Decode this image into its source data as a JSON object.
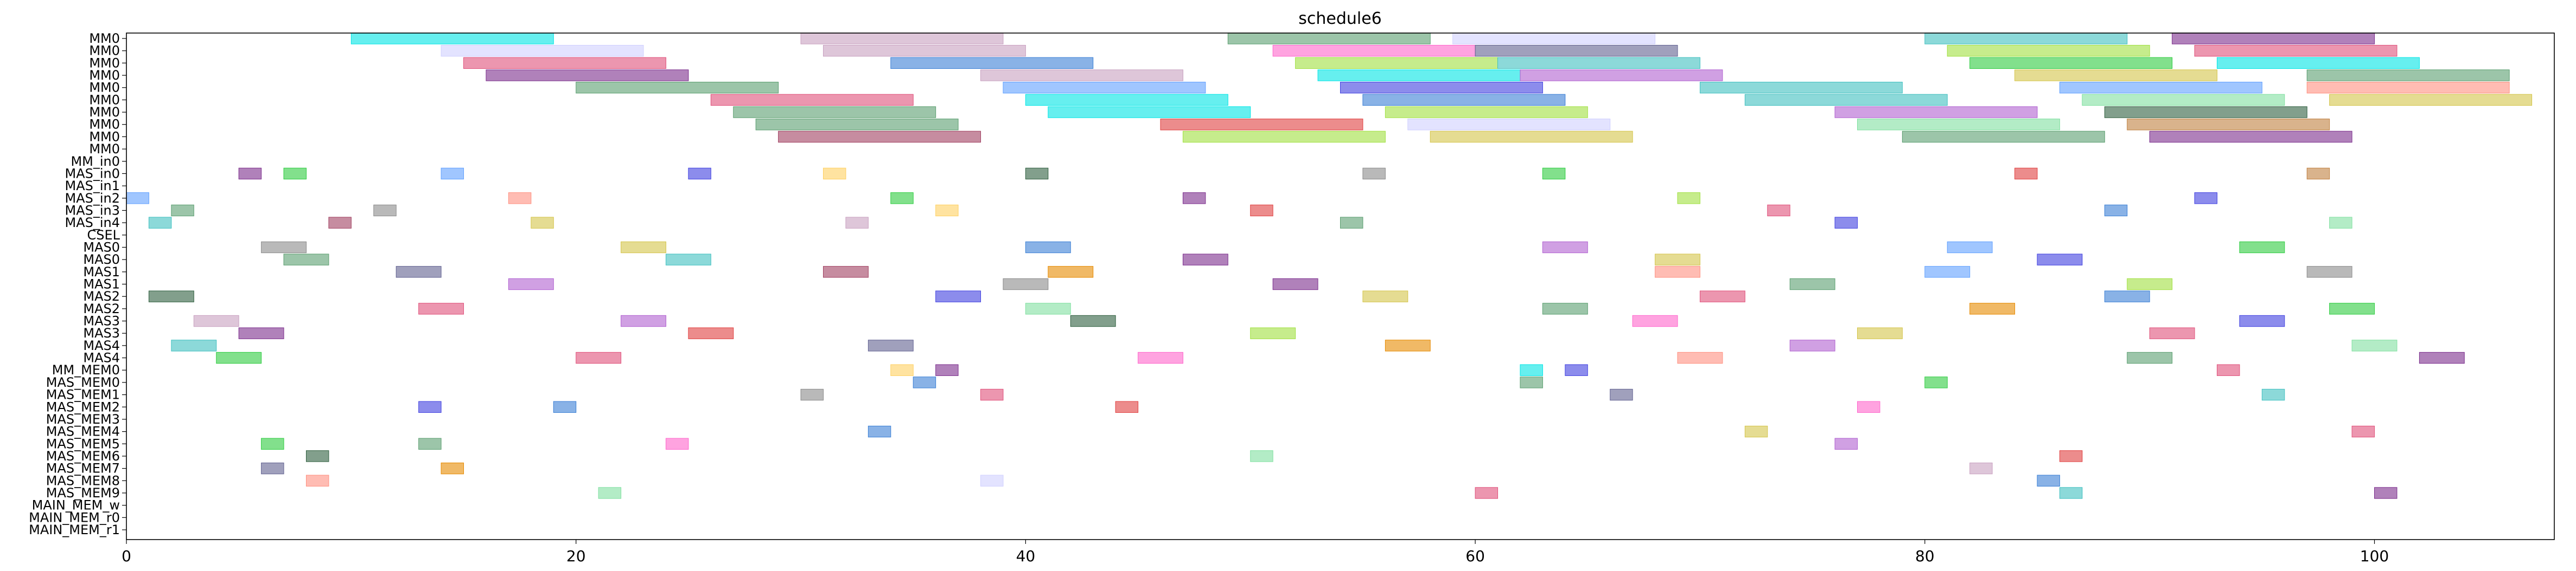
{
  "chart_data": {
    "type": "gantt",
    "title": "schedule6",
    "xlabel": "",
    "ylabel": "",
    "xlim": [
      0,
      108
    ],
    "grid": false,
    "legend": "none",
    "x_ticks": [
      0,
      20,
      40,
      60,
      80,
      100
    ],
    "x_tick_labels": [
      "0",
      "20",
      "40",
      "60",
      "80",
      "100"
    ],
    "rows": [
      "MM0",
      "MM0",
      "MM0",
      "MM0",
      "MM0",
      "MM0",
      "MM0",
      "MM0",
      "MM0",
      "MM0",
      "MM_in0",
      "MAS_in0",
      "MAS_in1",
      "MAS_in2",
      "MAS_in3",
      "MAS_in4",
      "CSEL",
      "MAS0",
      "MAS0",
      "MAS1",
      "MAS1",
      "MAS2",
      "MAS2",
      "MAS3",
      "MAS3",
      "MAS4",
      "MAS4",
      "MM_MEM0",
      "MAS_MEM0",
      "MAS_MEM1",
      "MAS_MEM2",
      "MAS_MEM3",
      "MAS_MEM4",
      "MAS_MEM5",
      "MAS_MEM6",
      "MAS_MEM7",
      "MAS_MEM8",
      "MAS_MEM9",
      "MAIN_MEM_w",
      "MAIN_MEM_r0",
      "MAIN_MEM_r1"
    ],
    "palette": [
      "#00e5e5",
      "#7b2d8c",
      "#e0507a",
      "#5a9e6f",
      "#3a7fd5",
      "#c8a0c0",
      "#e68a00",
      "#2ecc40",
      "#8a8a8a",
      "#d4c44a",
      "#ff66cc",
      "#4040e0",
      "#a0e040",
      "#e04040",
      "#40c0c0",
      "#b060d0",
      "#ffd060",
      "#60a0ff",
      "#c08040",
      "#80e0a0",
      "#2f5f3f",
      "#ff9080",
      "#d0d0ff",
      "#a04060",
      "#606090"
    ],
    "tasks": [
      {
        "row": 0,
        "start": 10,
        "end": 19,
        "c": 0
      },
      {
        "row": 0,
        "start": 30,
        "end": 39,
        "c": 5
      },
      {
        "row": 0,
        "start": 49,
        "end": 58,
        "c": 3
      },
      {
        "row": 0,
        "start": 59,
        "end": 68,
        "c": 22
      },
      {
        "row": 0,
        "start": 80,
        "end": 89,
        "c": 14
      },
      {
        "row": 0,
        "start": 91,
        "end": 100,
        "c": 1
      },
      {
        "row": 1,
        "start": 14,
        "end": 23,
        "c": 22
      },
      {
        "row": 1,
        "start": 31,
        "end": 40,
        "c": 5
      },
      {
        "row": 1,
        "start": 51,
        "end": 60,
        "c": 10
      },
      {
        "row": 1,
        "start": 60,
        "end": 69,
        "c": 24
      },
      {
        "row": 1,
        "start": 81,
        "end": 90,
        "c": 12
      },
      {
        "row": 1,
        "start": 92,
        "end": 101,
        "c": 2
      },
      {
        "row": 2,
        "start": 15,
        "end": 24,
        "c": 2
      },
      {
        "row": 2,
        "start": 34,
        "end": 43,
        "c": 4
      },
      {
        "row": 2,
        "start": 52,
        "end": 61,
        "c": 12
      },
      {
        "row": 2,
        "start": 61,
        "end": 70,
        "c": 14
      },
      {
        "row": 2,
        "start": 82,
        "end": 91,
        "c": 7
      },
      {
        "row": 2,
        "start": 93,
        "end": 102,
        "c": 0
      },
      {
        "row": 3,
        "start": 16,
        "end": 25,
        "c": 1
      },
      {
        "row": 3,
        "start": 38,
        "end": 47,
        "c": 5
      },
      {
        "row": 3,
        "start": 53,
        "end": 62,
        "c": 0
      },
      {
        "row": 3,
        "start": 62,
        "end": 71,
        "c": 15
      },
      {
        "row": 3,
        "start": 84,
        "end": 93,
        "c": 9
      },
      {
        "row": 3,
        "start": 97,
        "end": 106,
        "c": 3
      },
      {
        "row": 4,
        "start": 20,
        "end": 29,
        "c": 3
      },
      {
        "row": 4,
        "start": 39,
        "end": 48,
        "c": 17
      },
      {
        "row": 4,
        "start": 54,
        "end": 63,
        "c": 11
      },
      {
        "row": 4,
        "start": 70,
        "end": 79,
        "c": 14
      },
      {
        "row": 4,
        "start": 86,
        "end": 95,
        "c": 17
      },
      {
        "row": 4,
        "start": 97,
        "end": 106,
        "c": 21
      },
      {
        "row": 5,
        "start": 26,
        "end": 35,
        "c": 2
      },
      {
        "row": 5,
        "start": 40,
        "end": 49,
        "c": 0
      },
      {
        "row": 5,
        "start": 55,
        "end": 64,
        "c": 4
      },
      {
        "row": 5,
        "start": 72,
        "end": 81,
        "c": 14
      },
      {
        "row": 5,
        "start": 87,
        "end": 96,
        "c": 19
      },
      {
        "row": 5,
        "start": 98,
        "end": 107,
        "c": 9
      },
      {
        "row": 6,
        "start": 27,
        "end": 36,
        "c": 3
      },
      {
        "row": 6,
        "start": 41,
        "end": 50,
        "c": 0
      },
      {
        "row": 6,
        "start": 56,
        "end": 65,
        "c": 12
      },
      {
        "row": 6,
        "start": 76,
        "end": 85,
        "c": 15
      },
      {
        "row": 6,
        "start": 88,
        "end": 97,
        "c": 20
      },
      {
        "row": 7,
        "start": 28,
        "end": 37,
        "c": 3
      },
      {
        "row": 7,
        "start": 46,
        "end": 55,
        "c": 13
      },
      {
        "row": 7,
        "start": 57,
        "end": 66,
        "c": 22
      },
      {
        "row": 7,
        "start": 77,
        "end": 86,
        "c": 19
      },
      {
        "row": 7,
        "start": 89,
        "end": 98,
        "c": 18
      },
      {
        "row": 8,
        "start": 29,
        "end": 38,
        "c": 23
      },
      {
        "row": 8,
        "start": 47,
        "end": 56,
        "c": 12
      },
      {
        "row": 8,
        "start": 58,
        "end": 67,
        "c": 9
      },
      {
        "row": 8,
        "start": 79,
        "end": 88,
        "c": 3
      },
      {
        "row": 8,
        "start": 90,
        "end": 99,
        "c": 1
      },
      {
        "row": 11,
        "start": 5,
        "end": 6,
        "c": 1
      },
      {
        "row": 11,
        "start": 7,
        "end": 8,
        "c": 7
      },
      {
        "row": 11,
        "start": 14,
        "end": 15,
        "c": 17
      },
      {
        "row": 11,
        "start": 25,
        "end": 26,
        "c": 11
      },
      {
        "row": 11,
        "start": 31,
        "end": 32,
        "c": 16
      },
      {
        "row": 11,
        "start": 40,
        "end": 41,
        "c": 20
      },
      {
        "row": 11,
        "start": 55,
        "end": 56,
        "c": 8
      },
      {
        "row": 11,
        "start": 63,
        "end": 64,
        "c": 7
      },
      {
        "row": 11,
        "start": 84,
        "end": 85,
        "c": 13
      },
      {
        "row": 11,
        "start": 97,
        "end": 98,
        "c": 18
      },
      {
        "row": 13,
        "start": 0,
        "end": 1,
        "c": 17
      },
      {
        "row": 13,
        "start": 17,
        "end": 18,
        "c": 21
      },
      {
        "row": 13,
        "start": 34,
        "end": 35,
        "c": 7
      },
      {
        "row": 13,
        "start": 47,
        "end": 48,
        "c": 1
      },
      {
        "row": 13,
        "start": 69,
        "end": 70,
        "c": 12
      },
      {
        "row": 13,
        "start": 92,
        "end": 93,
        "c": 11
      },
      {
        "row": 14,
        "start": 2,
        "end": 3,
        "c": 3
      },
      {
        "row": 14,
        "start": 11,
        "end": 12,
        "c": 8
      },
      {
        "row": 14,
        "start": 36,
        "end": 37,
        "c": 16
      },
      {
        "row": 14,
        "start": 50,
        "end": 51,
        "c": 13
      },
      {
        "row": 14,
        "start": 73,
        "end": 74,
        "c": 2
      },
      {
        "row": 14,
        "start": 88,
        "end": 89,
        "c": 4
      },
      {
        "row": 15,
        "start": 1,
        "end": 2,
        "c": 14
      },
      {
        "row": 15,
        "start": 9,
        "end": 10,
        "c": 23
      },
      {
        "row": 15,
        "start": 18,
        "end": 19,
        "c": 9
      },
      {
        "row": 15,
        "start": 32,
        "end": 33,
        "c": 5
      },
      {
        "row": 15,
        "start": 54,
        "end": 55,
        "c": 3
      },
      {
        "row": 15,
        "start": 76,
        "end": 77,
        "c": 11
      },
      {
        "row": 15,
        "start": 98,
        "end": 99,
        "c": 19
      },
      {
        "row": 17,
        "start": 6,
        "end": 8,
        "c": 8
      },
      {
        "row": 17,
        "start": 22,
        "end": 24,
        "c": 9
      },
      {
        "row": 17,
        "start": 40,
        "end": 42,
        "c": 4
      },
      {
        "row": 17,
        "start": 63,
        "end": 65,
        "c": 15
      },
      {
        "row": 17,
        "start": 81,
        "end": 83,
        "c": 17
      },
      {
        "row": 17,
        "start": 94,
        "end": 96,
        "c": 7
      },
      {
        "row": 18,
        "start": 7,
        "end": 9,
        "c": 3
      },
      {
        "row": 18,
        "start": 24,
        "end": 26,
        "c": 14
      },
      {
        "row": 18,
        "start": 47,
        "end": 49,
        "c": 1
      },
      {
        "row": 18,
        "start": 68,
        "end": 70,
        "c": 9
      },
      {
        "row": 18,
        "start": 85,
        "end": 87,
        "c": 11
      },
      {
        "row": 19,
        "start": 12,
        "end": 14,
        "c": 24
      },
      {
        "row": 19,
        "start": 31,
        "end": 33,
        "c": 23
      },
      {
        "row": 19,
        "start": 41,
        "end": 43,
        "c": 6
      },
      {
        "row": 19,
        "start": 68,
        "end": 70,
        "c": 21
      },
      {
        "row": 19,
        "start": 80,
        "end": 82,
        "c": 17
      },
      {
        "row": 19,
        "start": 97,
        "end": 99,
        "c": 8
      },
      {
        "row": 20,
        "start": 17,
        "end": 19,
        "c": 15
      },
      {
        "row": 20,
        "start": 39,
        "end": 41,
        "c": 8
      },
      {
        "row": 20,
        "start": 51,
        "end": 53,
        "c": 1
      },
      {
        "row": 20,
        "start": 74,
        "end": 76,
        "c": 3
      },
      {
        "row": 20,
        "start": 89,
        "end": 91,
        "c": 12
      },
      {
        "row": 21,
        "start": 1,
        "end": 3,
        "c": 20
      },
      {
        "row": 21,
        "start": 36,
        "end": 38,
        "c": 11
      },
      {
        "row": 21,
        "start": 55,
        "end": 57,
        "c": 9
      },
      {
        "row": 21,
        "start": 70,
        "end": 72,
        "c": 2
      },
      {
        "row": 21,
        "start": 88,
        "end": 90,
        "c": 4
      },
      {
        "row": 22,
        "start": 13,
        "end": 15,
        "c": 2
      },
      {
        "row": 22,
        "start": 40,
        "end": 42,
        "c": 19
      },
      {
        "row": 22,
        "start": 63,
        "end": 65,
        "c": 3
      },
      {
        "row": 22,
        "start": 82,
        "end": 84,
        "c": 6
      },
      {
        "row": 22,
        "start": 98,
        "end": 100,
        "c": 7
      },
      {
        "row": 23,
        "start": 3,
        "end": 5,
        "c": 5
      },
      {
        "row": 23,
        "start": 22,
        "end": 24,
        "c": 15
      },
      {
        "row": 23,
        "start": 42,
        "end": 44,
        "c": 20
      },
      {
        "row": 23,
        "start": 67,
        "end": 69,
        "c": 10
      },
      {
        "row": 23,
        "start": 94,
        "end": 96,
        "c": 11
      },
      {
        "row": 24,
        "start": 5,
        "end": 7,
        "c": 1
      },
      {
        "row": 24,
        "start": 25,
        "end": 27,
        "c": 13
      },
      {
        "row": 24,
        "start": 50,
        "end": 52,
        "c": 12
      },
      {
        "row": 24,
        "start": 77,
        "end": 79,
        "c": 9
      },
      {
        "row": 24,
        "start": 90,
        "end": 92,
        "c": 2
      },
      {
        "row": 25,
        "start": 2,
        "end": 4,
        "c": 14
      },
      {
        "row": 25,
        "start": 33,
        "end": 35,
        "c": 24
      },
      {
        "row": 25,
        "start": 56,
        "end": 58,
        "c": 6
      },
      {
        "row": 25,
        "start": 74,
        "end": 76,
        "c": 15
      },
      {
        "row": 25,
        "start": 99,
        "end": 101,
        "c": 19
      },
      {
        "row": 26,
        "start": 4,
        "end": 6,
        "c": 7
      },
      {
        "row": 26,
        "start": 20,
        "end": 22,
        "c": 2
      },
      {
        "row": 26,
        "start": 45,
        "end": 47,
        "c": 10
      },
      {
        "row": 26,
        "start": 69,
        "end": 71,
        "c": 21
      },
      {
        "row": 26,
        "start": 89,
        "end": 91,
        "c": 3
      },
      {
        "row": 26,
        "start": 102,
        "end": 104,
        "c": 1
      },
      {
        "row": 27,
        "start": 34,
        "end": 35,
        "c": 16
      },
      {
        "row": 27,
        "start": 36,
        "end": 37,
        "c": 1
      },
      {
        "row": 27,
        "start": 62,
        "end": 63,
        "c": 0
      },
      {
        "row": 27,
        "start": 64,
        "end": 65,
        "c": 11
      },
      {
        "row": 27,
        "start": 93,
        "end": 94,
        "c": 2
      },
      {
        "row": 28,
        "start": 35,
        "end": 36,
        "c": 4
      },
      {
        "row": 28,
        "start": 62,
        "end": 63,
        "c": 3
      },
      {
        "row": 28,
        "start": 80,
        "end": 81,
        "c": 7
      },
      {
        "row": 29,
        "start": 30,
        "end": 31,
        "c": 8
      },
      {
        "row": 29,
        "start": 38,
        "end": 39,
        "c": 2
      },
      {
        "row": 29,
        "start": 66,
        "end": 67,
        "c": 24
      },
      {
        "row": 29,
        "start": 95,
        "end": 96,
        "c": 14
      },
      {
        "row": 30,
        "start": 13,
        "end": 14,
        "c": 11
      },
      {
        "row": 30,
        "start": 19,
        "end": 20,
        "c": 4
      },
      {
        "row": 30,
        "start": 44,
        "end": 45,
        "c": 13
      },
      {
        "row": 30,
        "start": 77,
        "end": 78,
        "c": 10
      },
      {
        "row": 32,
        "start": 33,
        "end": 34,
        "c": 4
      },
      {
        "row": 32,
        "start": 72,
        "end": 73,
        "c": 9
      },
      {
        "row": 32,
        "start": 99,
        "end": 100,
        "c": 2
      },
      {
        "row": 33,
        "start": 6,
        "end": 7,
        "c": 7
      },
      {
        "row": 33,
        "start": 13,
        "end": 14,
        "c": 3
      },
      {
        "row": 33,
        "start": 24,
        "end": 25,
        "c": 10
      },
      {
        "row": 33,
        "start": 76,
        "end": 77,
        "c": 15
      },
      {
        "row": 34,
        "start": 8,
        "end": 9,
        "c": 20
      },
      {
        "row": 34,
        "start": 50,
        "end": 51,
        "c": 19
      },
      {
        "row": 34,
        "start": 86,
        "end": 87,
        "c": 13
      },
      {
        "row": 35,
        "start": 6,
        "end": 7,
        "c": 24
      },
      {
        "row": 35,
        "start": 14,
        "end": 15,
        "c": 6
      },
      {
        "row": 35,
        "start": 82,
        "end": 83,
        "c": 5
      },
      {
        "row": 36,
        "start": 8,
        "end": 9,
        "c": 21
      },
      {
        "row": 36,
        "start": 38,
        "end": 39,
        "c": 22
      },
      {
        "row": 36,
        "start": 85,
        "end": 86,
        "c": 4
      },
      {
        "row": 37,
        "start": 21,
        "end": 22,
        "c": 19
      },
      {
        "row": 37,
        "start": 60,
        "end": 61,
        "c": 2
      },
      {
        "row": 37,
        "start": 86,
        "end": 87,
        "c": 14
      },
      {
        "row": 37,
        "start": 100,
        "end": 101,
        "c": 1
      }
    ]
  }
}
